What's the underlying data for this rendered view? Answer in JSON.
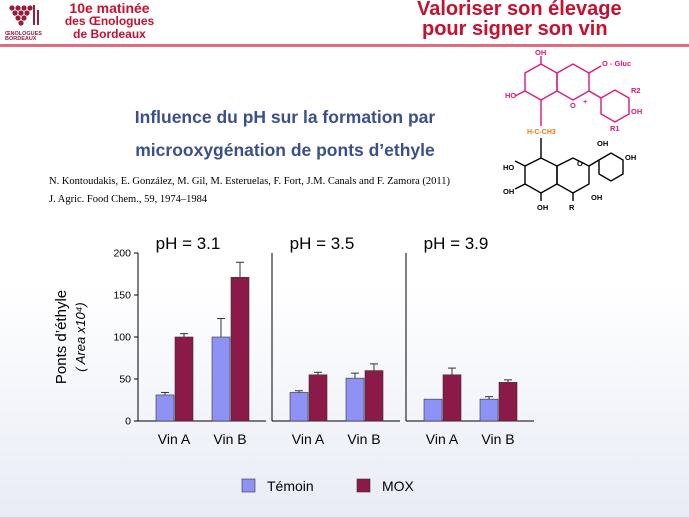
{
  "header": {
    "event_line1": "10e matinée",
    "event_line2": "des Œnologues",
    "event_line3": "de Bordeaux",
    "logo_text": "ŒNOLOGUES BORDEAUX",
    "slogan_line1": "Valoriser son élevage",
    "slogan_line2": "pour signer son vin"
  },
  "slide": {
    "title_line1": "Influence du pH sur la formation par",
    "title_line2": "microoxygénation de ponts d’ethyle",
    "ref_line1": "N. Kontoudakis, E. González, M. Gil, M. Esteruelas, F. Fort, J.M. Canals and F. Zamora (2011)",
    "ref_line2": "J. Agric. Food Chem., 59, 1974–1984"
  },
  "molecule": {
    "labels": [
      "OH",
      "O - Gluc",
      "HO",
      "O",
      "+",
      "R2",
      "OH",
      "R1",
      "H-C-CH3",
      "OH",
      "OH",
      "HO",
      "O",
      "OH",
      "OH",
      "R",
      "OH"
    ]
  },
  "colors": {
    "temoin": "#8f92f5",
    "mox": "#8b1a48",
    "title": "#3a4f8c",
    "brand": "#c8102e",
    "molecule_top": "#e0147a"
  },
  "chart_data": {
    "type": "bar",
    "ylabel_line1": "Ponts d’éthyle",
    "ylabel_line2": "( Area x10⁴)",
    "ylim": [
      0,
      200
    ],
    "yticks": [
      0,
      50,
      100,
      150,
      200
    ],
    "legend": [
      "Témoin",
      "MOX"
    ],
    "legend_position": "bottom",
    "panels": [
      {
        "title": "pH = 3.1",
        "categories": [
          "Vin A",
          "Vin B"
        ],
        "series": [
          {
            "name": "Témoin",
            "values": [
              31,
              100
            ],
            "errors": [
              3,
              22
            ]
          },
          {
            "name": "MOX",
            "values": [
              100,
              171
            ],
            "errors": [
              4,
              18
            ]
          }
        ]
      },
      {
        "title": "pH = 3.5",
        "categories": [
          "Vin A",
          "Vin B"
        ],
        "series": [
          {
            "name": "Témoin",
            "values": [
              34,
              51
            ],
            "errors": [
              2,
              6
            ]
          },
          {
            "name": "MOX",
            "values": [
              55,
              60
            ],
            "errors": [
              3,
              8
            ]
          }
        ]
      },
      {
        "title": "pH = 3.9",
        "categories": [
          "Vin A",
          "Vin B"
        ],
        "series": [
          {
            "name": "Témoin",
            "values": [
              26,
              26
            ],
            "errors": [
              0,
              3
            ]
          },
          {
            "name": "MOX",
            "values": [
              55,
              46
            ],
            "errors": [
              8,
              3
            ]
          }
        ]
      }
    ]
  }
}
